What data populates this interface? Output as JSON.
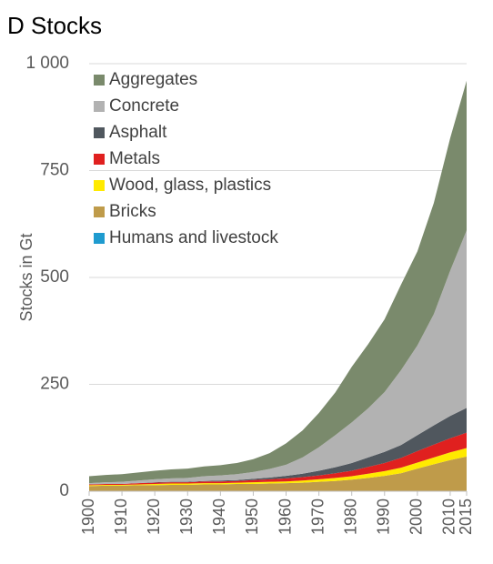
{
  "chart_data": {
    "type": "stacked_area",
    "title": "D Stocks",
    "y_label": "Stocks in Gt",
    "x": [
      1900,
      1905,
      1910,
      1915,
      1920,
      1925,
      1930,
      1935,
      1940,
      1945,
      1950,
      1955,
      1960,
      1965,
      1970,
      1975,
      1980,
      1985,
      1990,
      1995,
      2000,
      2005,
      2010,
      2015
    ],
    "xlim": [
      1900,
      2015
    ],
    "xticks": [
      1900,
      1910,
      1920,
      1930,
      1940,
      1950,
      1960,
      1970,
      1980,
      1990,
      2000,
      2010,
      2015
    ],
    "ylim": [
      0,
      1000
    ],
    "yticks": [
      0,
      250,
      500,
      750,
      {
        "value": 1000,
        "label": "1 000"
      }
    ],
    "grid": true,
    "legend": "top-left",
    "series": [
      {
        "name": "Aggregates",
        "color": "#7a8a6c",
        "values": [
          16,
          17,
          18,
          19,
          20,
          21,
          22,
          23,
          24,
          26,
          30,
          37,
          50,
          63,
          80,
          100,
          130,
          150,
          170,
          200,
          220,
          260,
          310,
          350
        ]
      },
      {
        "name": "Concrete",
        "color": "#b2b2b2",
        "values": [
          3,
          4,
          5,
          6,
          7,
          8,
          9,
          11,
          12,
          14,
          16,
          20,
          26,
          38,
          55,
          75,
          95,
          115,
          140,
          175,
          210,
          260,
          340,
          415
        ]
      },
      {
        "name": "Asphalt",
        "color": "#50575e",
        "values": [
          0,
          0,
          0,
          0,
          1,
          1,
          1,
          1,
          2,
          2,
          3,
          4,
          6,
          8,
          11,
          14,
          18,
          22,
          26,
          30,
          37,
          45,
          52,
          58
        ]
      },
      {
        "name": "Metals",
        "color": "#e0201f",
        "values": [
          2,
          2,
          2,
          3,
          3,
          3,
          3,
          4,
          4,
          4,
          5,
          6,
          7,
          8,
          9,
          11,
          13,
          16,
          19,
          23,
          27,
          30,
          33,
          36
        ]
      },
      {
        "name": "Wood, glass, plastics",
        "color": "#ffea00",
        "values": [
          2,
          2,
          2,
          2,
          3,
          3,
          3,
          3,
          3,
          3,
          4,
          4,
          4,
          5,
          6,
          7,
          8,
          10,
          11,
          13,
          14,
          16,
          18,
          20
        ]
      },
      {
        "name": "Bricks",
        "color": "#bf9b4a",
        "values": [
          11,
          12,
          12,
          13,
          13,
          14,
          14,
          15,
          15,
          16,
          16,
          17,
          18,
          19,
          21,
          23,
          26,
          30,
          35,
          41,
          52,
          62,
          72,
          80
        ]
      },
      {
        "name": "Humans and livestock",
        "color": "#1f9bcf",
        "values": [
          1,
          1,
          1,
          1,
          1,
          1,
          1,
          1,
          1,
          1,
          1,
          1,
          1,
          1,
          1,
          1,
          1,
          1,
          1,
          1,
          1,
          1,
          1,
          1
        ]
      }
    ]
  }
}
